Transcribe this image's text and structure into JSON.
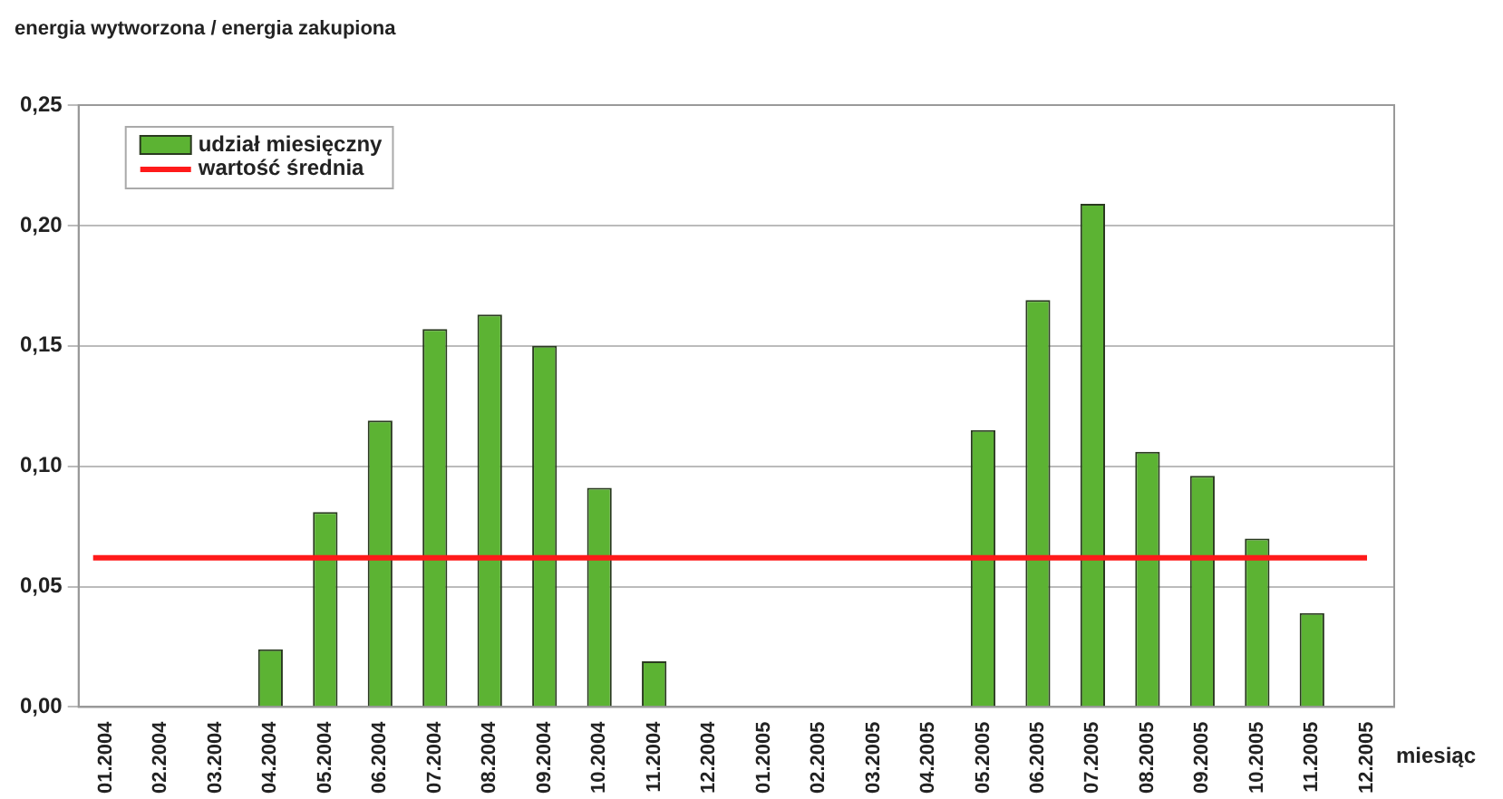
{
  "chart_data": {
    "type": "bar",
    "ylabel": "energia wytworzona / energia zakupiona",
    "xlabel": "miesiąc",
    "categories": [
      "01.2004",
      "02.2004",
      "03.2004",
      "04.2004",
      "05.2004",
      "06.2004",
      "07.2004",
      "08.2004",
      "09.2004",
      "10.2004",
      "11.2004",
      "12.2004",
      "01.2005",
      "02.2005",
      "03.2005",
      "04.2005",
      "05.2005",
      "06.2005",
      "07.2005",
      "08.2005",
      "09.2005",
      "10.2005",
      "11.2005",
      "12.2005"
    ],
    "series": [
      {
        "name": "udział miesięczny",
        "color": "#5cb333",
        "values": [
          0,
          0,
          0,
          0.024,
          0.081,
          0.119,
          0.157,
          0.163,
          0.15,
          0.091,
          0.019,
          0,
          0,
          0,
          0,
          0,
          0.115,
          0.169,
          0.209,
          0.106,
          0.096,
          0.07,
          0.039,
          0
        ]
      }
    ],
    "ylim": [
      0,
      0.25
    ],
    "yticks": [
      {
        "value": 0,
        "label": "0,00"
      },
      {
        "value": 0.05,
        "label": "0,05"
      },
      {
        "value": 0.1,
        "label": "0,10"
      },
      {
        "value": 0.15,
        "label": "0,15"
      },
      {
        "value": 0.2,
        "label": "0,20"
      },
      {
        "value": 0.25,
        "label": "0,25"
      }
    ],
    "ref_lines": [
      {
        "axis": "y",
        "value": 0.062,
        "label": "wartość średnia",
        "color": "#ff1a1a"
      }
    ],
    "grid": "y",
    "legend": "top left"
  }
}
